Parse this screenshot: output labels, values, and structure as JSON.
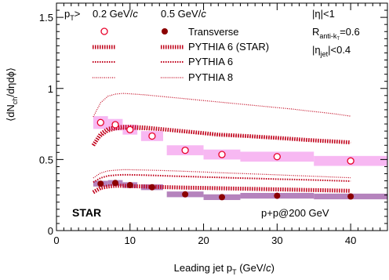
{
  "chart_data": {
    "type": "scatter",
    "title": "",
    "xlabel": "Leading jet p",
    "xlabel_sub": "T",
    "xlabel_unit_pre": " (GeV/",
    "xlabel_unit_var": "c",
    "xlabel_unit_post": ")",
    "ylabel": "⟨dN",
    "ylabel_sub": "ch",
    "ylabel_rest": "/dηdϕ⟩",
    "xlim": [
      0,
      45
    ],
    "ylim": [
      0,
      1.6
    ],
    "x_ticks": [
      0,
      10,
      20,
      30,
      40
    ],
    "y_ticks": [
      0,
      0.5,
      1,
      1.5
    ],
    "x_tick_labels": [
      "0",
      "10",
      "20",
      "30",
      "40"
    ],
    "y_tick_labels": [
      "0",
      "0.5",
      "1",
      "1.5"
    ],
    "legend": {
      "placement": "top-left",
      "pt_prefix": "p",
      "pt_sub": "T",
      "pt_suffix": ">",
      "col1_value": "0.2 GeV/",
      "col1_var": "c",
      "col2_value": "0.5 GeV/",
      "col2_var": "c",
      "entries": [
        "Transverse",
        "PYTHIA 6 (STAR)",
        "PYTHIA 6",
        "PYTHIA 8"
      ]
    },
    "annotations": {
      "eta": "|η|<1",
      "r_main": "R",
      "r_sub": "anti-k",
      "r_subsub": "T",
      "r_value": "=0.6",
      "eta_jet_main": "|η",
      "eta_jet_sub": "jet",
      "eta_jet_value": "|<0.4",
      "experiment": "STAR",
      "system": "p+p@200 GeV"
    },
    "colors": {
      "open_marker": "#e8002a",
      "filled_marker": "#8b0000",
      "sys_band_02": "#f7b8f2",
      "sys_band_05": "#b583bd",
      "pythia_curves": "#c0001a"
    },
    "series": [
      {
        "name": "Transverse",
        "pt_cut": "0.2 GeV/c",
        "marker": "open",
        "x": [
          6,
          8,
          10,
          13,
          17.5,
          22.5,
          30,
          40
        ],
        "y": [
          0.76,
          0.745,
          0.71,
          0.665,
          0.565,
          0.535,
          0.52,
          0.49
        ],
        "sys_half_width": [
          1,
          1,
          1,
          1.5,
          2.5,
          2.5,
          5,
          5
        ],
        "sys_err": [
          0.045,
          0.04,
          0.035,
          0.035,
          0.035,
          0.035,
          0.035,
          0.035
        ]
      },
      {
        "name": "Transverse",
        "pt_cut": "0.5 GeV/c",
        "marker": "filled",
        "x": [
          6,
          8,
          10,
          13,
          17.5,
          22.5,
          30,
          40
        ],
        "y": [
          0.33,
          0.335,
          0.32,
          0.305,
          0.255,
          0.235,
          0.245,
          0.24
        ],
        "sys_half_width": [
          1,
          1,
          1,
          1.5,
          2.5,
          2.5,
          5,
          5
        ],
        "sys_err": [
          0.02,
          0.02,
          0.02,
          0.02,
          0.02,
          0.02,
          0.02,
          0.02
        ]
      },
      {
        "name": "PYTHIA 6 (STAR)",
        "pt_cut": "0.2 GeV/c",
        "style": "band",
        "x": [
          5,
          6,
          7,
          8,
          9,
          10,
          12,
          14,
          16,
          18,
          20,
          22,
          24,
          26,
          28,
          30,
          32,
          34,
          36,
          38,
          40
        ],
        "y": [
          0.6,
          0.68,
          0.715,
          0.725,
          0.73,
          0.73,
          0.725,
          0.715,
          0.705,
          0.695,
          0.685,
          0.675,
          0.67,
          0.665,
          0.658,
          0.652,
          0.645,
          0.638,
          0.632,
          0.626,
          0.62
        ]
      },
      {
        "name": "PYTHIA 6",
        "pt_cut": "0.2 GeV/c",
        "style": "dotted",
        "x": [
          5,
          6,
          7,
          8,
          9,
          10,
          12,
          14,
          16,
          18,
          20,
          22,
          24,
          26,
          28,
          30,
          32,
          34,
          36,
          38,
          40
        ],
        "y": [
          0.6,
          0.66,
          0.695,
          0.71,
          0.715,
          0.715,
          0.712,
          0.707,
          0.7,
          0.69,
          0.682,
          0.675,
          0.668,
          0.662,
          0.656,
          0.65,
          0.643,
          0.636,
          0.63,
          0.624,
          0.618
        ]
      },
      {
        "name": "PYTHIA 8",
        "pt_cut": "0.2 GeV/c",
        "style": "thin-dotted",
        "x": [
          5,
          6,
          7,
          8,
          9,
          10,
          12,
          14,
          16,
          18,
          20,
          22,
          24,
          26,
          28,
          30,
          32,
          34,
          36,
          38,
          40
        ],
        "y": [
          0.8,
          0.9,
          0.945,
          0.96,
          0.965,
          0.962,
          0.955,
          0.945,
          0.935,
          0.925,
          0.915,
          0.905,
          0.895,
          0.885,
          0.875,
          0.865,
          0.855,
          0.843,
          0.832,
          0.82,
          0.805
        ]
      },
      {
        "name": "PYTHIA 6 (STAR)",
        "pt_cut": "0.5 GeV/c",
        "style": "band",
        "x": [
          5,
          6,
          7,
          8,
          9,
          10,
          12,
          14,
          16,
          18,
          20,
          22,
          24,
          26,
          28,
          30,
          32,
          34,
          36,
          38,
          40
        ],
        "y": [
          0.27,
          0.3,
          0.31,
          0.315,
          0.315,
          0.313,
          0.31,
          0.307,
          0.304,
          0.302,
          0.3,
          0.298,
          0.296,
          0.294,
          0.292,
          0.29,
          0.288,
          0.286,
          0.284,
          0.282,
          0.28
        ]
      },
      {
        "name": "PYTHIA 6",
        "pt_cut": "0.5 GeV/c",
        "style": "dotted",
        "x": [
          5,
          6,
          7,
          8,
          9,
          10,
          12,
          14,
          16,
          18,
          20,
          22,
          24,
          26,
          28,
          30,
          32,
          34,
          36,
          38,
          40
        ],
        "y": [
          0.34,
          0.37,
          0.385,
          0.39,
          0.392,
          0.392,
          0.39,
          0.387,
          0.383,
          0.38,
          0.377,
          0.374,
          0.371,
          0.368,
          0.365,
          0.362,
          0.36,
          0.357,
          0.354,
          0.351,
          0.348
        ]
      },
      {
        "name": "PYTHIA 8",
        "pt_cut": "0.5 GeV/c",
        "style": "thin-dotted",
        "x": [
          5,
          6,
          7,
          8,
          9,
          10,
          12,
          14,
          16,
          18,
          20,
          22,
          24,
          26,
          28,
          30,
          32,
          34,
          36,
          38,
          40
        ],
        "y": [
          0.37,
          0.405,
          0.42,
          0.425,
          0.428,
          0.428,
          0.426,
          0.423,
          0.42,
          0.416,
          0.412,
          0.408,
          0.404,
          0.4,
          0.396,
          0.392,
          0.388,
          0.384,
          0.38,
          0.376,
          0.372
        ]
      }
    ]
  }
}
